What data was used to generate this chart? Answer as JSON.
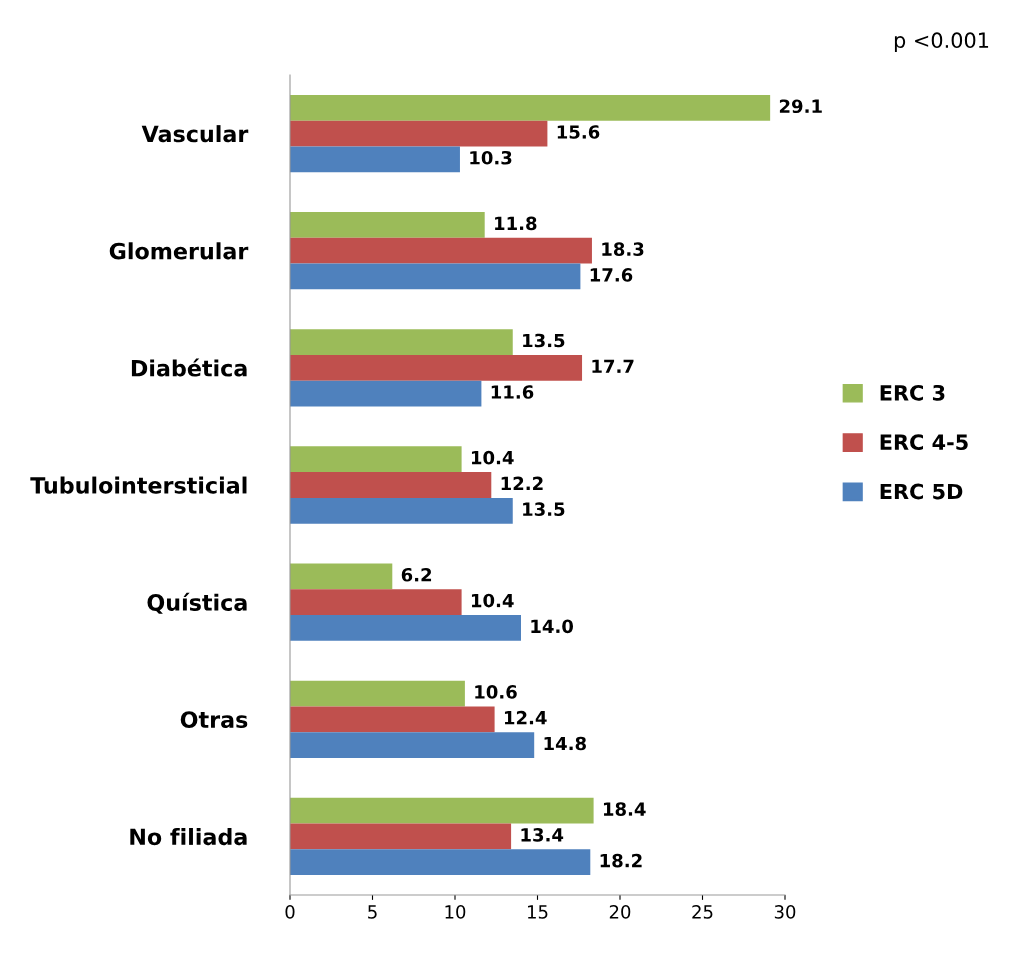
{
  "chart_data": {
    "type": "bar",
    "orientation": "horizontal",
    "categories": [
      "Vascular",
      "Glomerular",
      "Diabética",
      "Tubulointersticial",
      "Quística",
      "Otras",
      "No filiada"
    ],
    "series": [
      {
        "name": "ERC 3",
        "color": "#9bbb59",
        "values": [
          29.1,
          11.8,
          13.5,
          10.4,
          6.2,
          10.6,
          18.4
        ],
        "value_labels": [
          "29.1",
          "11.8",
          "13.5",
          "10.4",
          "6.2",
          "10.6",
          "18.4"
        ]
      },
      {
        "name": "ERC 4-5",
        "color": "#c0504d",
        "values": [
          15.6,
          18.3,
          17.7,
          12.2,
          10.4,
          12.4,
          13.4
        ],
        "value_labels": [
          "15.6",
          "18.3",
          "17.7",
          "12.2",
          "10.4",
          "12.4",
          "13.4"
        ]
      },
      {
        "name": "ERC 5D",
        "color": "#4f81bd",
        "values": [
          10.3,
          17.6,
          11.6,
          13.5,
          14.0,
          14.8,
          18.2
        ],
        "value_labels": [
          "10.3",
          "17.6",
          "11.6",
          "13.5",
          "14.0",
          "14.8",
          "18.2"
        ]
      }
    ],
    "xlim": [
      0,
      30
    ],
    "xticks": [
      0,
      5,
      10,
      15,
      20,
      25,
      30
    ],
    "grid": false,
    "legend": "right",
    "annotations": [
      "p <0.001"
    ]
  }
}
